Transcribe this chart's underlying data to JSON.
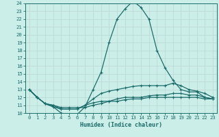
{
  "xlabel": "Humidex (Indice chaleur)",
  "xlim": [
    -0.5,
    23.5
  ],
  "ylim": [
    10,
    24
  ],
  "yticks": [
    10,
    11,
    12,
    13,
    14,
    15,
    16,
    17,
    18,
    19,
    20,
    21,
    22,
    23,
    24
  ],
  "xticks": [
    0,
    1,
    2,
    3,
    4,
    5,
    6,
    7,
    8,
    9,
    10,
    11,
    12,
    13,
    14,
    15,
    16,
    17,
    18,
    19,
    20,
    21,
    22,
    23
  ],
  "bg_color": "#cceee8",
  "line_color": "#1a6b6b",
  "grid_color": "#c0dcd8",
  "series": [
    [
      13.0,
      12.0,
      11.2,
      10.8,
      10.0,
      9.8,
      9.8,
      10.8,
      13.0,
      15.2,
      19.0,
      22.0,
      23.3,
      24.3,
      23.5,
      22.0,
      18.0,
      15.8,
      14.2,
      13.0,
      12.7,
      12.7,
      12.0,
      11.8
    ],
    [
      13.0,
      12.0,
      11.2,
      10.8,
      10.5,
      10.5,
      10.5,
      11.0,
      11.8,
      12.5,
      12.8,
      13.0,
      13.2,
      13.4,
      13.5,
      13.5,
      13.5,
      13.5,
      13.8,
      13.5,
      13.0,
      12.8,
      12.5,
      12.0
    ],
    [
      13.0,
      12.0,
      11.2,
      11.0,
      10.5,
      10.5,
      10.5,
      11.0,
      11.3,
      11.5,
      11.5,
      11.8,
      12.0,
      12.0,
      12.0,
      12.2,
      12.3,
      12.3,
      12.5,
      12.5,
      12.3,
      12.3,
      12.0,
      11.8
    ],
    [
      13.0,
      12.0,
      11.2,
      11.0,
      10.7,
      10.7,
      10.7,
      10.7,
      11.0,
      11.2,
      11.5,
      11.5,
      11.7,
      11.8,
      11.8,
      12.0,
      12.0,
      12.0,
      12.0,
      12.0,
      12.0,
      12.0,
      11.8,
      11.8
    ]
  ]
}
